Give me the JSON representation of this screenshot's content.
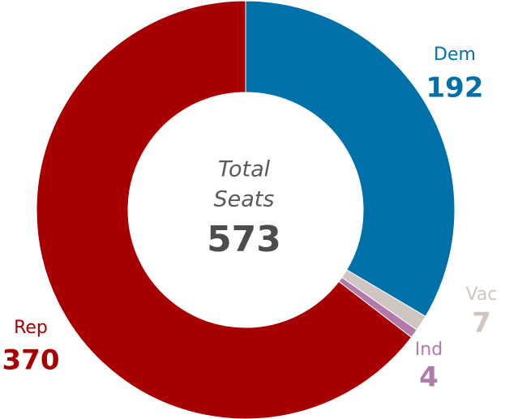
{
  "chart_data": {
    "type": "donut",
    "categories": [
      "Dem",
      "Vac",
      "Ind",
      "Rep"
    ],
    "values": [
      192,
      7,
      4,
      370
    ],
    "colors": [
      "#0070a8",
      "#cfc6c2",
      "#b27aab",
      "#a80000"
    ],
    "label_colors": [
      "#0070a8",
      "#cfc6c2",
      "#b27aab",
      "#a80000"
    ],
    "center_label_lines": [
      "Total",
      "Seats"
    ],
    "center_value": 573
  }
}
